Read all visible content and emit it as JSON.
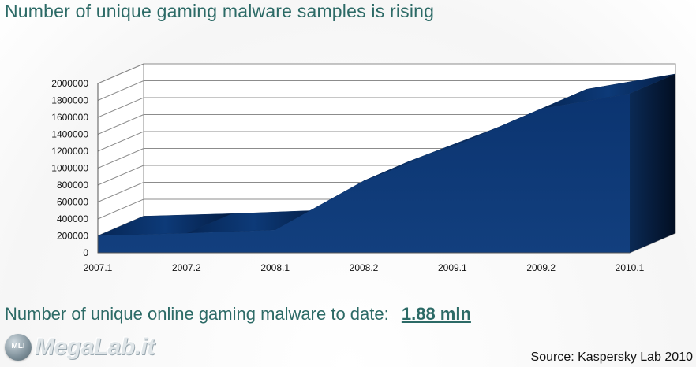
{
  "title": "Number of unique gaming malware samples is rising",
  "chart_data": {
    "type": "area",
    "categories": [
      "2007.1",
      "2007.2",
      "2008.1",
      "2008.2",
      "2009.1",
      "2009.2",
      "2010.1"
    ],
    "values": [
      200000,
      230000,
      270000,
      850000,
      1250000,
      1700000,
      1880000
    ],
    "yticks": [
      0,
      200000,
      400000,
      600000,
      800000,
      1000000,
      1200000,
      1400000,
      1600000,
      1800000,
      2000000
    ],
    "ylim": [
      0,
      2000000
    ],
    "grid": true,
    "three_d": true,
    "color": "#0f3e7c"
  },
  "summary": {
    "label": "Number of unique online gaming malware to date:",
    "value": "1.88 mln"
  },
  "logo": {
    "badge": "MLI",
    "text": "MegaLab.it"
  },
  "source": "Source: Kaspersky Lab 2010"
}
